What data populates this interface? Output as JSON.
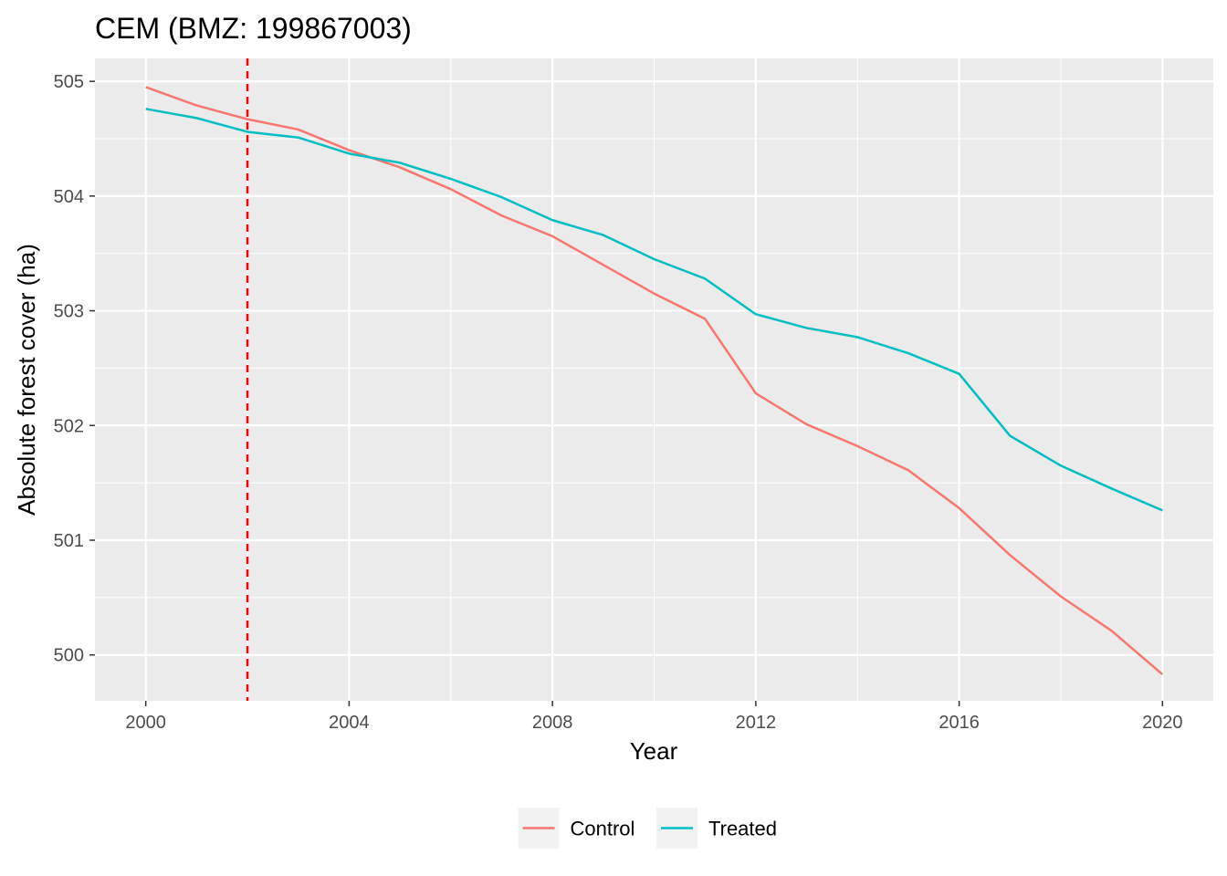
{
  "chart_data": {
    "type": "line",
    "title": "CEM (BMZ: 199867003)",
    "xlabel": "Year",
    "ylabel": "Absolute forest cover (ha)",
    "xlim": [
      1999,
      2021
    ],
    "ylim": [
      499.6,
      505.2
    ],
    "x_ticks": [
      2000,
      2004,
      2008,
      2012,
      2016,
      2020
    ],
    "y_ticks": [
      500,
      501,
      502,
      503,
      504,
      505
    ],
    "grid": true,
    "background": "#EBEBEB",
    "legend_position": "bottom",
    "x": [
      2000,
      2001,
      2002,
      2003,
      2004,
      2005,
      2006,
      2007,
      2008,
      2009,
      2010,
      2011,
      2012,
      2013,
      2014,
      2015,
      2016,
      2017,
      2018,
      2019,
      2020
    ],
    "series": [
      {
        "name": "Control",
        "color": "#F8766D",
        "values": [
          504.95,
          504.79,
          504.67,
          504.58,
          504.4,
          504.25,
          504.06,
          503.83,
          503.65,
          503.4,
          503.15,
          502.93,
          502.28,
          502.01,
          501.82,
          501.61,
          501.28,
          500.87,
          500.51,
          500.21,
          499.83
        ]
      },
      {
        "name": "Treated",
        "color": "#00BFC4",
        "values": [
          504.76,
          504.68,
          504.56,
          504.51,
          504.37,
          504.29,
          504.15,
          503.99,
          503.79,
          503.66,
          503.45,
          503.28,
          502.97,
          502.85,
          502.77,
          502.63,
          502.45,
          501.91,
          501.65,
          501.45,
          501.26
        ]
      }
    ],
    "vline": {
      "x": 2002,
      "color": "#FF0000",
      "style": "dashed"
    }
  }
}
